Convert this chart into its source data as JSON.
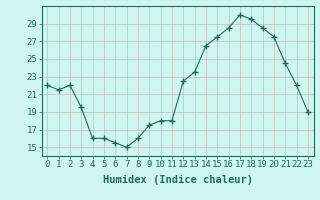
{
  "x": [
    0,
    1,
    2,
    3,
    4,
    5,
    6,
    7,
    8,
    9,
    10,
    11,
    12,
    13,
    14,
    15,
    16,
    17,
    18,
    19,
    20,
    21,
    22,
    23
  ],
  "y": [
    22.0,
    21.5,
    22.0,
    19.5,
    16.0,
    16.0,
    15.5,
    15.0,
    16.0,
    17.5,
    18.0,
    18.0,
    22.5,
    23.5,
    26.5,
    27.5,
    28.5,
    30.0,
    29.5,
    28.5,
    27.5,
    24.5,
    22.0,
    19.0
  ],
  "xlabel": "Humidex (Indice chaleur)",
  "ylim": [
    14,
    31
  ],
  "yticks": [
    15,
    17,
    19,
    21,
    23,
    25,
    27,
    29
  ],
  "xtick_labels": [
    "0",
    "1",
    "2",
    "3",
    "4",
    "5",
    "6",
    "7",
    "8",
    "9",
    "10",
    "11",
    "12",
    "13",
    "14",
    "15",
    "16",
    "17",
    "18",
    "19",
    "20",
    "21",
    "22",
    "23"
  ],
  "line_color": "#1e6b5e",
  "marker": "+",
  "marker_size": 4,
  "marker_lw": 1.0,
  "bg_color": "#cef5f0",
  "grid_color": "#c8b8b8",
  "axes_color": "#1e6b5e",
  "xlabel_fontsize": 7.5,
  "tick_fontsize": 6.5
}
